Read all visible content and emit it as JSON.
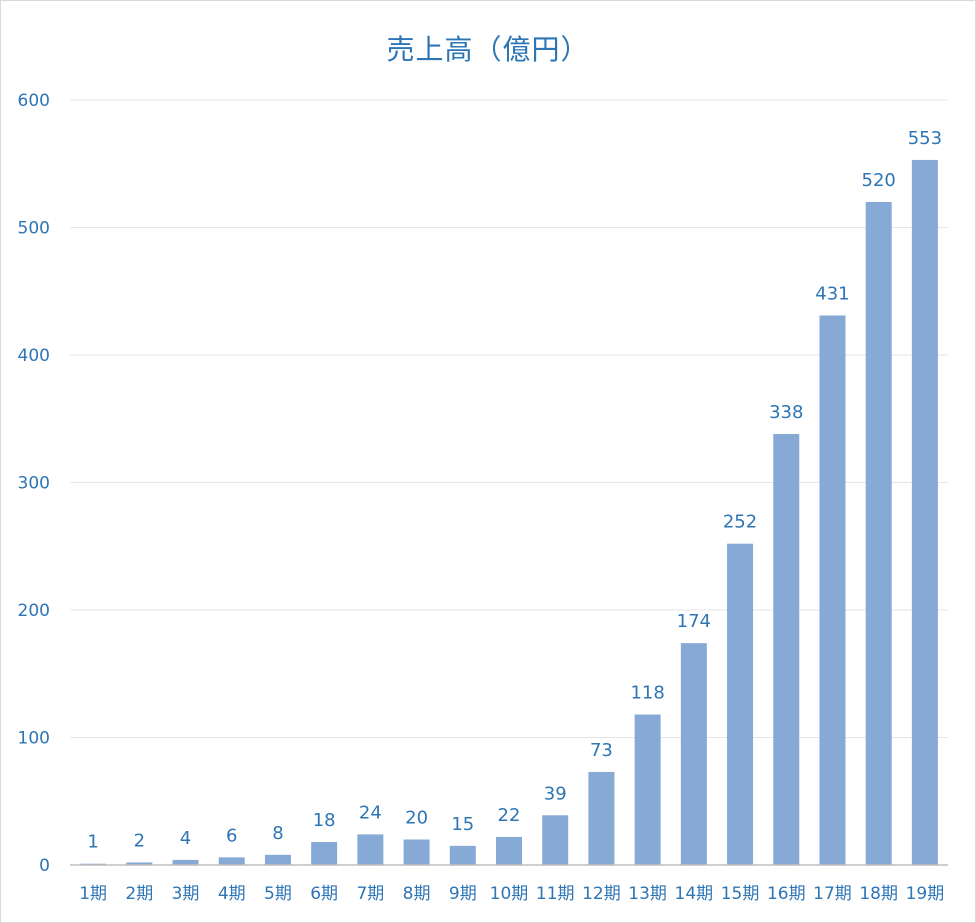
{
  "chart_data": {
    "type": "bar",
    "title": "売上高（億円）",
    "xlabel": "",
    "ylabel": "",
    "categories": [
      "1期",
      "2期",
      "3期",
      "4期",
      "5期",
      "6期",
      "7期",
      "8期",
      "9期",
      "10期",
      "11期",
      "12期",
      "13期",
      "14期",
      "15期",
      "16期",
      "17期",
      "18期",
      "19期"
    ],
    "values": [
      1,
      2,
      4,
      6,
      8,
      18,
      24,
      20,
      15,
      22,
      39,
      73,
      118,
      174,
      252,
      338,
      431,
      520,
      553
    ],
    "ylim": [
      0,
      600
    ],
    "yticks": [
      0,
      100,
      200,
      300,
      400,
      500,
      600
    ],
    "grid": true,
    "legend": "none",
    "colors": {
      "bar": "#86a9d5",
      "text": "#2e75b6",
      "grid": "#e6e6e6",
      "axis": "#bfbfbf"
    }
  }
}
